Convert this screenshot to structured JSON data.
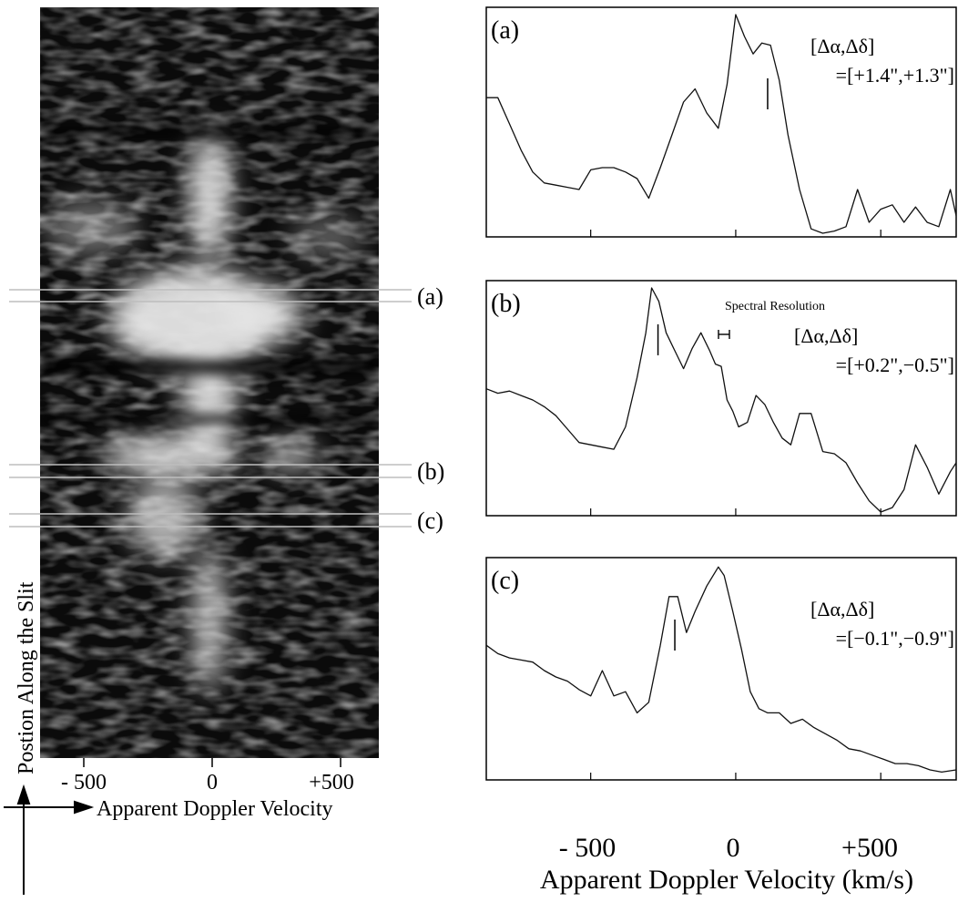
{
  "left_panel": {
    "ylabel": "Postion Along the Slit",
    "xlabel": "Apparent Doppler Velocity",
    "xticks": [
      "- 500",
      "0",
      "+500"
    ],
    "cut_labels": [
      "(a)",
      "(b)",
      "(c)"
    ]
  },
  "right_panels": {
    "xlabel": "Apparent Doppler Velocity (km/s)",
    "xticks": [
      "- 500",
      "0",
      "+500"
    ],
    "spectral_resolution_label": "Spectral Resolution"
  },
  "chart_data": [
    {
      "type": "line",
      "panel": "(a)",
      "annotation": [
        "[Δα,Δδ]",
        "=[+1.4\",+1.3\"]"
      ],
      "xlim": [
        -860,
        760
      ],
      "ylim": [
        0,
        1
      ],
      "marker_x": 110,
      "x": [
        -860,
        -820,
        -780,
        -740,
        -700,
        -660,
        -620,
        -580,
        -540,
        -500,
        -460,
        -420,
        -380,
        -340,
        -300,
        -260,
        -220,
        -180,
        -140,
        -100,
        -60,
        -30,
        0,
        30,
        60,
        90,
        120,
        150,
        180,
        220,
        260,
        300,
        340,
        380,
        420,
        460,
        500,
        540,
        580,
        620,
        660,
        700,
        740,
        760
      ],
      "y": [
        0.62,
        0.62,
        0.5,
        0.38,
        0.28,
        0.23,
        0.22,
        0.21,
        0.2,
        0.29,
        0.3,
        0.3,
        0.28,
        0.25,
        0.16,
        0.3,
        0.45,
        0.6,
        0.66,
        0.55,
        0.48,
        0.68,
        1.0,
        0.9,
        0.82,
        0.87,
        0.86,
        0.7,
        0.45,
        0.2,
        0.02,
        0.0,
        0.01,
        0.03,
        0.2,
        0.05,
        0.11,
        0.13,
        0.05,
        0.12,
        0.05,
        0.03,
        0.2,
        0.08
      ]
    },
    {
      "type": "line",
      "panel": "(b)",
      "annotation": [
        "[Δα,Δδ]",
        "=[+0.2\",−0.5\"]"
      ],
      "xlim": [
        -860,
        760
      ],
      "ylim": [
        0,
        1
      ],
      "marker_x": -268,
      "x": [
        -860,
        -820,
        -780,
        -740,
        -700,
        -660,
        -620,
        -580,
        -540,
        -500,
        -460,
        -420,
        -380,
        -340,
        -310,
        -290,
        -265,
        -240,
        -210,
        -180,
        -150,
        -120,
        -90,
        -70,
        -50,
        -30,
        -10,
        10,
        40,
        70,
        100,
        130,
        160,
        190,
        220,
        260,
        300,
        340,
        380,
        420,
        460,
        500,
        540,
        580,
        620,
        660,
        700,
        740,
        760
      ],
      "y": [
        0.55,
        0.53,
        0.54,
        0.52,
        0.5,
        0.47,
        0.43,
        0.37,
        0.31,
        0.3,
        0.29,
        0.28,
        0.38,
        0.6,
        0.8,
        1.0,
        0.94,
        0.8,
        0.72,
        0.64,
        0.73,
        0.8,
        0.72,
        0.66,
        0.65,
        0.5,
        0.45,
        0.38,
        0.4,
        0.52,
        0.48,
        0.4,
        0.33,
        0.3,
        0.44,
        0.44,
        0.27,
        0.26,
        0.22,
        0.13,
        0.05,
        0.0,
        0.02,
        0.1,
        0.3,
        0.2,
        0.08,
        0.18,
        0.22
      ]
    },
    {
      "type": "line",
      "panel": "(c)",
      "annotation": [
        "[Δα,Δδ]",
        "=[−0.1\",−0.9\"]"
      ],
      "xlim": [
        -860,
        760
      ],
      "ylim": [
        0,
        1
      ],
      "marker_x": -210,
      "x": [
        -860,
        -820,
        -780,
        -740,
        -700,
        -660,
        -620,
        -580,
        -540,
        -500,
        -460,
        -420,
        -380,
        -340,
        -300,
        -260,
        -230,
        -200,
        -170,
        -140,
        -100,
        -60,
        -40,
        -10,
        20,
        50,
        80,
        110,
        150,
        190,
        230,
        270,
        310,
        350,
        390,
        430,
        470,
        510,
        550,
        590,
        630,
        670,
        710,
        760
      ],
      "y": [
        0.62,
        0.58,
        0.56,
        0.55,
        0.54,
        0.5,
        0.47,
        0.45,
        0.41,
        0.38,
        0.5,
        0.38,
        0.4,
        0.3,
        0.35,
        0.62,
        0.85,
        0.85,
        0.68,
        0.78,
        0.9,
        0.99,
        0.95,
        0.78,
        0.6,
        0.4,
        0.32,
        0.3,
        0.3,
        0.25,
        0.27,
        0.23,
        0.2,
        0.17,
        0.13,
        0.12,
        0.1,
        0.08,
        0.06,
        0.06,
        0.05,
        0.03,
        0.02,
        0.03
      ]
    }
  ]
}
